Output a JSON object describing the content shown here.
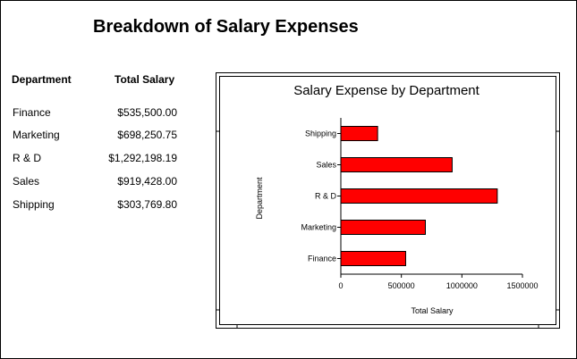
{
  "page": {
    "title": "Breakdown of Salary Expenses"
  },
  "table": {
    "headers": {
      "department": "Department",
      "salary": "Total Salary"
    },
    "rows": [
      {
        "department": "Finance",
        "salary": "$535,500.00"
      },
      {
        "department": "Marketing",
        "salary": "$698,250.75"
      },
      {
        "department": "R & D",
        "salary": "$1,292,198.19"
      },
      {
        "department": "Sales",
        "salary": "$919,428.00"
      },
      {
        "department": "Shipping",
        "salary": "$303,769.80"
      }
    ]
  },
  "chart_data": {
    "type": "bar",
    "orientation": "horizontal",
    "title": "Salary Expense by Department",
    "xlabel": "Total Salary",
    "ylabel": "Department",
    "categories": [
      "Finance",
      "Marketing",
      "R & D",
      "Sales",
      "Shipping"
    ],
    "values": [
      535500.0,
      698250.75,
      1292198.19,
      919428.0,
      303769.8
    ],
    "xlim": [
      0,
      1500000
    ],
    "xticks": [
      0,
      500000,
      1000000,
      1500000
    ],
    "xtick_labels": [
      "0",
      "500000",
      "1000000",
      "1500000"
    ],
    "bar_color": "#ff0000",
    "grid": false,
    "legend": "none"
  }
}
